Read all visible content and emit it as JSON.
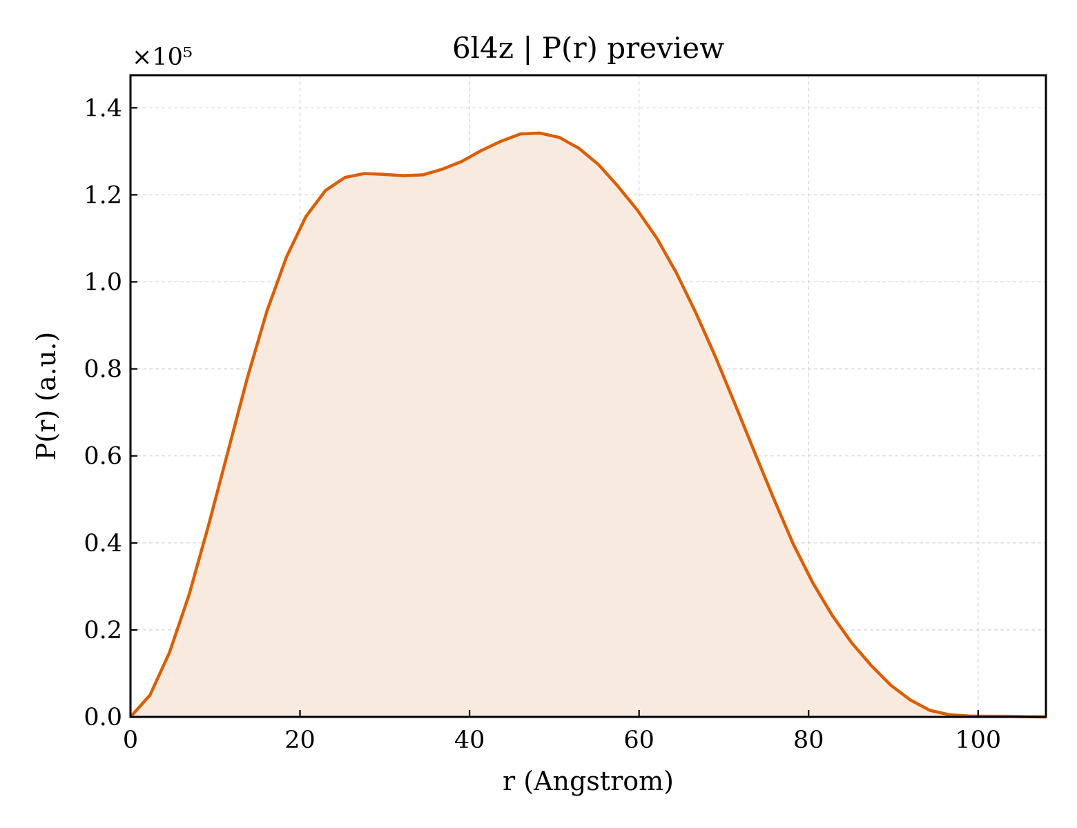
{
  "chart_data": {
    "type": "area",
    "title": "6l4z | P(r) preview",
    "xlabel": "r (Angstrom)",
    "ylabel": "P(r) (a.u.)",
    "y_scale_label": "×10⁵",
    "y_multiplier": 100000,
    "xlim": [
      0,
      108
    ],
    "ylim": [
      0,
      147500
    ],
    "x_ticks": [
      0,
      20,
      40,
      60,
      80,
      100
    ],
    "x_tick_labels": [
      "0",
      "20",
      "40",
      "60",
      "80",
      "100"
    ],
    "y_ticks": [
      0,
      20000,
      40000,
      60000,
      80000,
      100000,
      120000,
      140000
    ],
    "y_tick_labels": [
      "0.0",
      "0.2",
      "0.4",
      "0.6",
      "0.8",
      "1.0",
      "1.2",
      "1.4"
    ],
    "grid": true,
    "colors": {
      "line": "#d95f02",
      "fill": "#f8eadf",
      "grid": "#d4d4d4",
      "axes": "#000000"
    },
    "series": [
      {
        "x": [
          0,
          2.3,
          4.6,
          6.9,
          9.2,
          11.5,
          13.8,
          16.1,
          18.4,
          20.7,
          23.0,
          25.3,
          27.6,
          29.9,
          32.2,
          34.5,
          36.8,
          39.1,
          41.4,
          43.7,
          46.0,
          48.3,
          50.6,
          52.9,
          55.2,
          57.5,
          59.8,
          62.1,
          64.4,
          66.7,
          69.0,
          71.3,
          73.6,
          75.9,
          78.2,
          80.5,
          82.8,
          85.1,
          87.4,
          89.7,
          92.0,
          94.3,
          96.6,
          98.9,
          101.2,
          103.5,
          105.8,
          108
        ],
        "y": [
          0,
          5000,
          14800,
          28000,
          44000,
          61000,
          78000,
          93300,
          105700,
          115000,
          121000,
          124000,
          124900,
          124700,
          124400,
          124600,
          125900,
          127700,
          130200,
          132300,
          134000,
          134200,
          133200,
          130700,
          127000,
          122000,
          116500,
          110000,
          102100,
          92900,
          82800,
          72000,
          61000,
          50100,
          39700,
          30800,
          23300,
          17000,
          11800,
          7300,
          3900,
          1500,
          500,
          200,
          150,
          150,
          50,
          0
        ]
      }
    ]
  }
}
